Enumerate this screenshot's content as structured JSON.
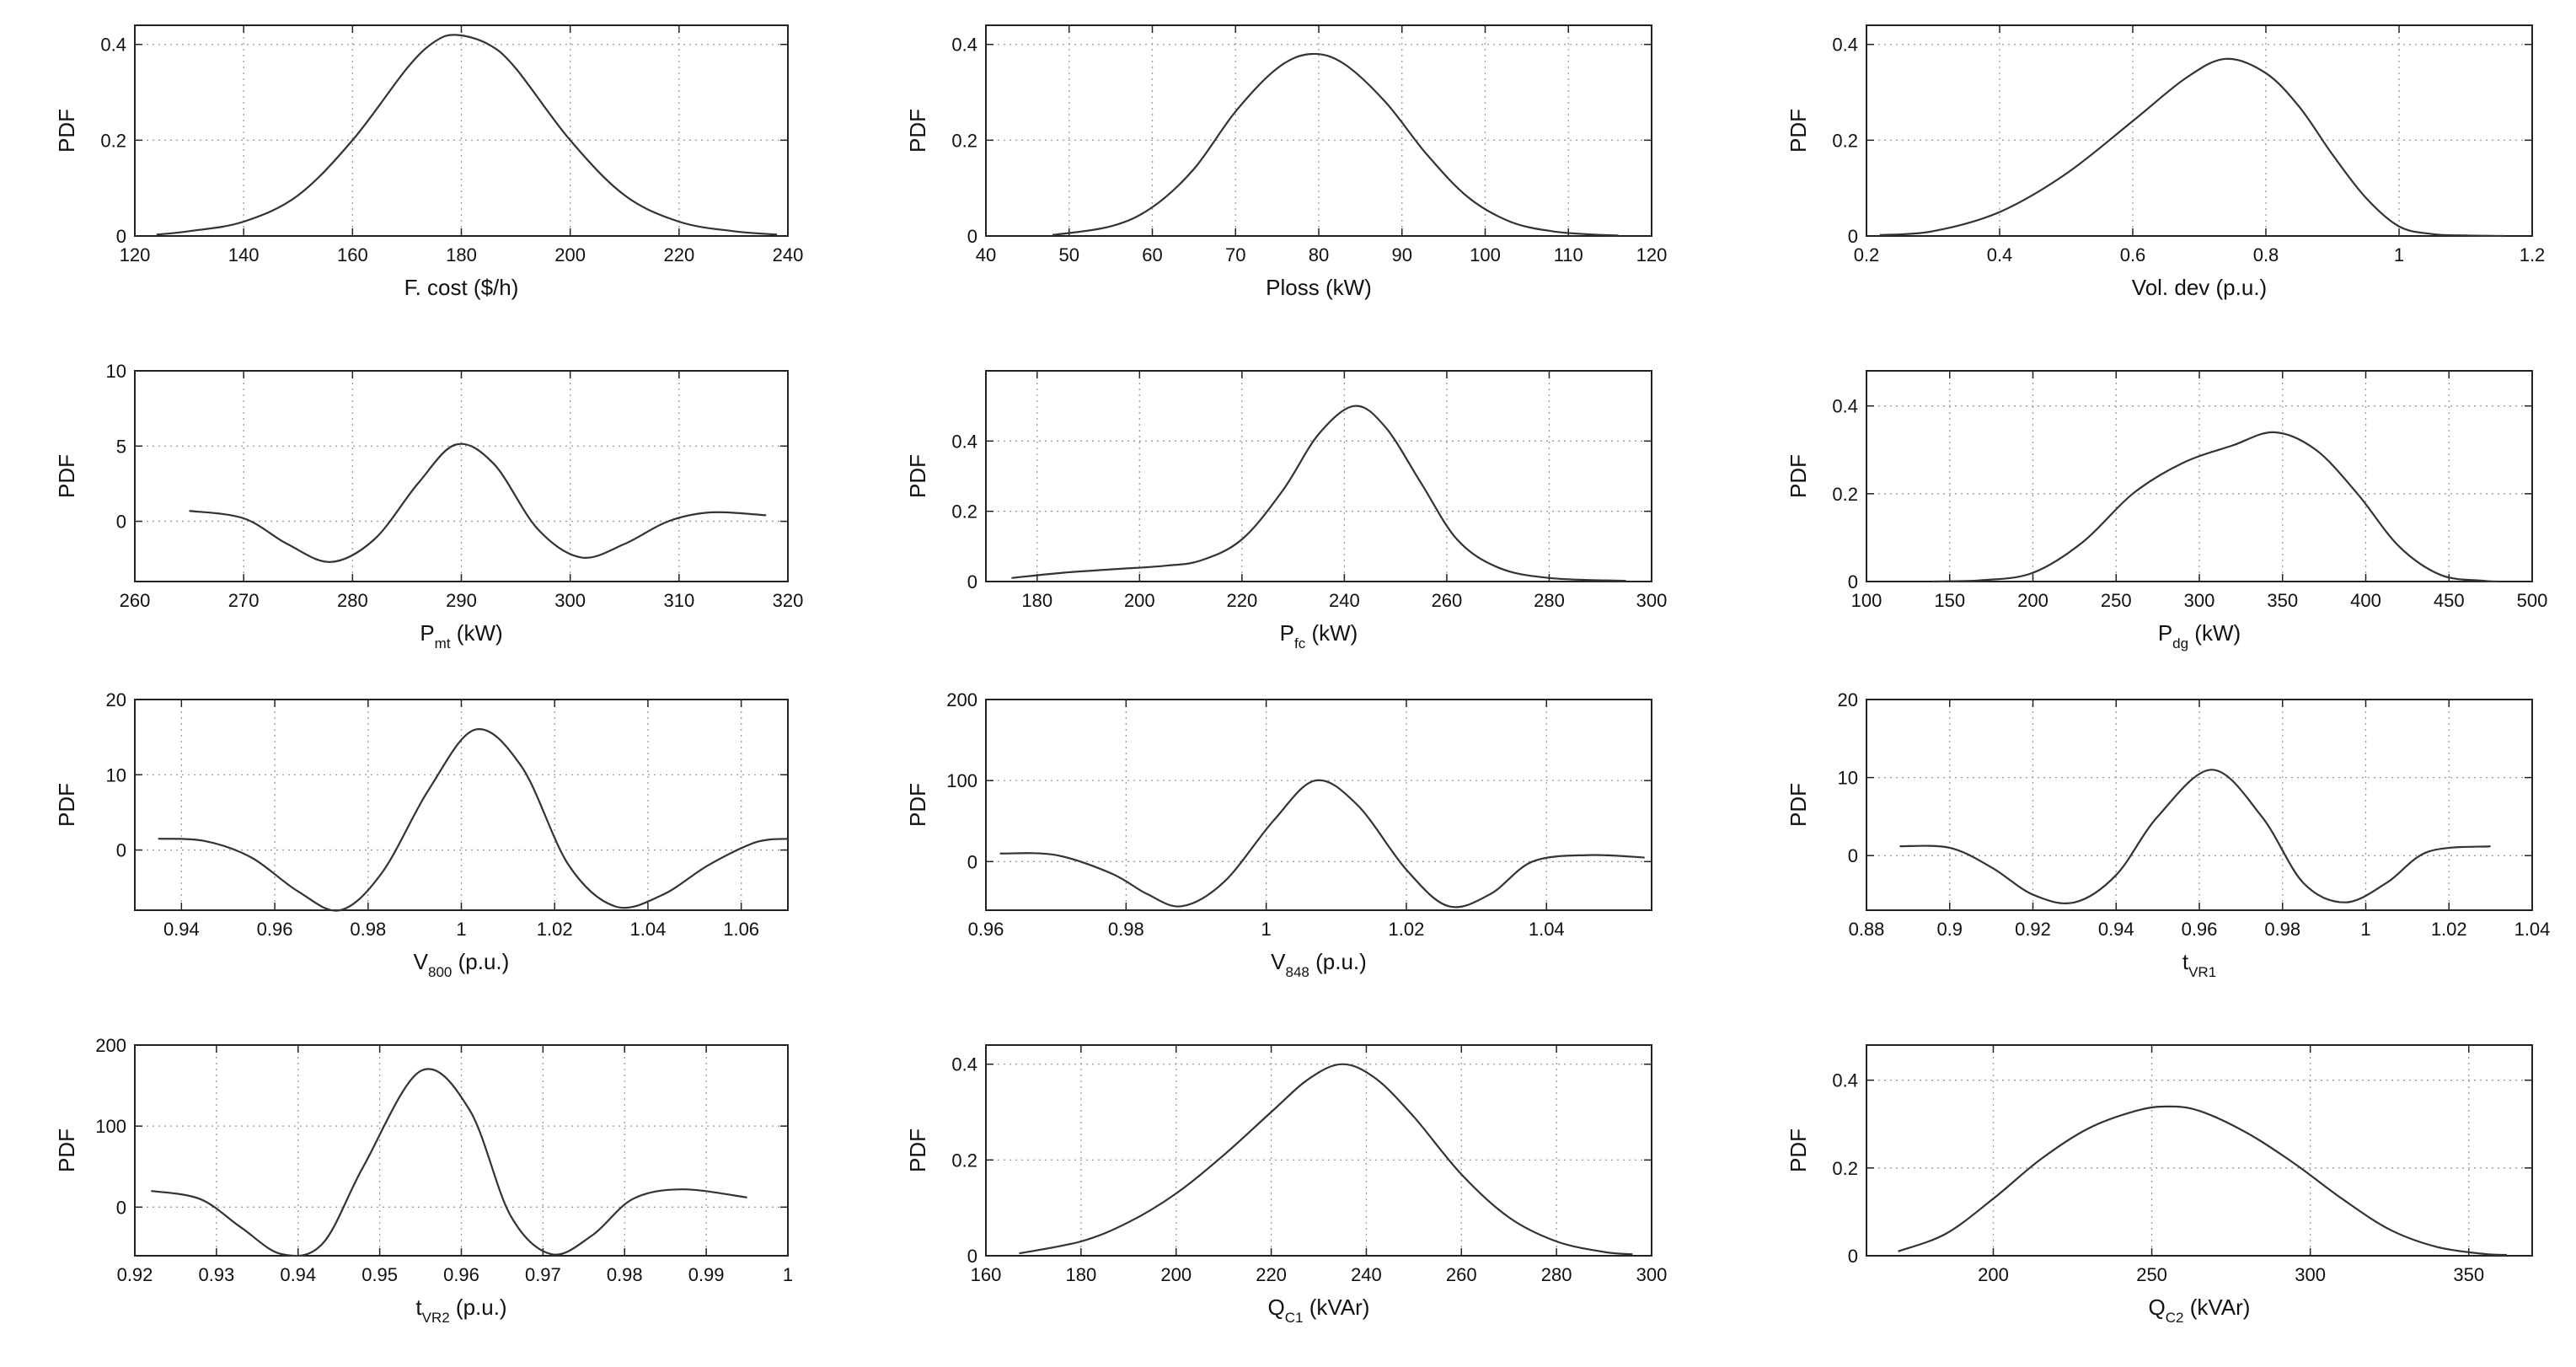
{
  "chart_data": [
    {
      "type": "line",
      "xlabel": [
        {
          "t": "F. cost ($/h)"
        }
      ],
      "ylabel": "PDF",
      "xlim": [
        120,
        240
      ],
      "ylim": [
        0,
        0.44
      ],
      "xticks": [
        120,
        140,
        160,
        180,
        200,
        220,
        240
      ],
      "xtick_labels": [
        "120",
        "140",
        "160",
        "180",
        "200",
        "220",
        "240"
      ],
      "yticks": [
        0,
        0.2,
        0.4
      ],
      "ytick_labels": [
        "0",
        "0.2",
        "0.4"
      ],
      "grid": true,
      "x": [
        124,
        130,
        140,
        150,
        160,
        170,
        175,
        179,
        185,
        190,
        200,
        210,
        220,
        230,
        238
      ],
      "y": [
        0.003,
        0.01,
        0.03,
        0.085,
        0.2,
        0.35,
        0.405,
        0.42,
        0.4,
        0.35,
        0.2,
        0.085,
        0.03,
        0.01,
        0.003
      ]
    },
    {
      "type": "line",
      "xlabel": [
        {
          "t": "Ploss (kW)"
        }
      ],
      "ylabel": "PDF",
      "xlim": [
        40,
        120
      ],
      "ylim": [
        0,
        0.44
      ],
      "xticks": [
        40,
        50,
        60,
        70,
        80,
        90,
        100,
        110,
        120
      ],
      "xtick_labels": [
        "40",
        "50",
        "60",
        "70",
        "80",
        "90",
        "100",
        "110",
        "120"
      ],
      "yticks": [
        0,
        0.2,
        0.4
      ],
      "ytick_labels": [
        "0",
        "0.2",
        "0.4"
      ],
      "grid": true,
      "x": [
        48,
        55,
        60,
        65,
        70,
        75,
        79,
        83,
        88,
        93,
        98,
        103,
        108,
        113,
        116
      ],
      "y": [
        0.002,
        0.02,
        0.06,
        0.14,
        0.26,
        0.35,
        0.38,
        0.36,
        0.28,
        0.17,
        0.08,
        0.03,
        0.01,
        0.003,
        0.001
      ]
    },
    {
      "type": "line",
      "xlabel": [
        {
          "t": "Vol. dev (p.u.)"
        }
      ],
      "ylabel": "PDF",
      "xlim": [
        0.2,
        1.2
      ],
      "ylim": [
        0,
        0.44
      ],
      "xticks": [
        0.2,
        0.4,
        0.6,
        0.8,
        1,
        1.2
      ],
      "xtick_labels": [
        "0.2",
        "0.4",
        "0.6",
        "0.8",
        "1",
        "1.2"
      ],
      "yticks": [
        0,
        0.2,
        0.4
      ],
      "ytick_labels": [
        "0",
        "0.2",
        "0.4"
      ],
      "grid": true,
      "x": [
        0.22,
        0.3,
        0.4,
        0.5,
        0.6,
        0.68,
        0.74,
        0.8,
        0.85,
        0.9,
        0.95,
        1.0,
        1.05,
        1.1,
        1.16
      ],
      "y": [
        0.002,
        0.01,
        0.05,
        0.13,
        0.24,
        0.33,
        0.37,
        0.34,
        0.27,
        0.17,
        0.08,
        0.02,
        0.004,
        0.001,
        0
      ]
    },
    {
      "type": "line",
      "xlabel": [
        {
          "t": "P"
        },
        {
          "t": "mt",
          "sub": true
        },
        {
          "t": " (kW)"
        }
      ],
      "ylabel": "PDF",
      "xlim": [
        260,
        320
      ],
      "ylim": [
        -4,
        10
      ],
      "xticks": [
        260,
        270,
        280,
        290,
        300,
        310,
        320
      ],
      "xtick_labels": [
        "260",
        "270",
        "280",
        "290",
        "300",
        "310",
        "320"
      ],
      "yticks": [
        0,
        5,
        10
      ],
      "ytick_labels": [
        "0",
        "5",
        "10"
      ],
      "grid": true,
      "x": [
        265,
        270,
        274,
        278,
        282,
        286,
        289.5,
        293,
        297,
        301,
        305,
        309,
        313,
        318
      ],
      "y": [
        0.7,
        0.2,
        -1.5,
        -2.7,
        -1.2,
        2.5,
        5.1,
        3.8,
        -0.5,
        -2.4,
        -1.5,
        0.0,
        0.6,
        0.4
      ]
    },
    {
      "type": "line",
      "xlabel": [
        {
          "t": "P"
        },
        {
          "t": "fc",
          "sub": true
        },
        {
          "t": " (kW)"
        }
      ],
      "ylabel": "PDF",
      "xlim": [
        170,
        300
      ],
      "ylim": [
        0,
        0.6
      ],
      "xticks": [
        180,
        200,
        220,
        240,
        260,
        280,
        300
      ],
      "xtick_labels": [
        "180",
        "200",
        "220",
        "240",
        "260",
        "280",
        "300"
      ],
      "yticks": [
        0,
        0.2,
        0.4
      ],
      "ytick_labels": [
        "0",
        "0.2",
        "0.4"
      ],
      "grid": true,
      "x": [
        175,
        185,
        195,
        205,
        212,
        220,
        228,
        235,
        242,
        248,
        255,
        262,
        270,
        280,
        295
      ],
      "y": [
        0.01,
        0.025,
        0.035,
        0.045,
        0.06,
        0.12,
        0.26,
        0.42,
        0.5,
        0.44,
        0.28,
        0.12,
        0.04,
        0.01,
        0.002
      ]
    },
    {
      "type": "line",
      "xlabel": [
        {
          "t": "P"
        },
        {
          "t": "dg",
          "sub": true
        },
        {
          "t": " (kW)"
        }
      ],
      "ylabel": "PDF",
      "xlim": [
        100,
        500
      ],
      "ylim": [
        0,
        0.48
      ],
      "xticks": [
        100,
        150,
        200,
        250,
        300,
        350,
        400,
        450,
        500
      ],
      "xtick_labels": [
        "100",
        "150",
        "200",
        "250",
        "300",
        "350",
        "400",
        "450",
        "500"
      ],
      "yticks": [
        0,
        0.2,
        0.4
      ],
      "ytick_labels": [
        "0",
        "0.2",
        "0.4"
      ],
      "grid": true,
      "x": [
        140,
        170,
        200,
        230,
        260,
        290,
        320,
        345,
        370,
        395,
        420,
        445,
        470,
        480
      ],
      "y": [
        0,
        0.003,
        0.02,
        0.09,
        0.2,
        0.27,
        0.31,
        0.34,
        0.3,
        0.2,
        0.08,
        0.015,
        0.002,
        0
      ]
    },
    {
      "type": "line",
      "xlabel": [
        {
          "t": "V"
        },
        {
          "t": "800",
          "sub": true
        },
        {
          "t": " (p.u.)"
        }
      ],
      "ylabel": "PDF",
      "xlim": [
        0.93,
        1.07
      ],
      "ylim": [
        -8,
        20
      ],
      "xticks": [
        0.94,
        0.96,
        0.98,
        1,
        1.02,
        1.04,
        1.06
      ],
      "xtick_labels": [
        "0.94",
        "0.96",
        "0.98",
        "1",
        "1.02",
        "1.04",
        "1.06"
      ],
      "yticks": [
        0,
        10,
        20
      ],
      "ytick_labels": [
        "0",
        "10",
        "20"
      ],
      "grid": true,
      "x": [
        0.935,
        0.945,
        0.955,
        0.965,
        0.974,
        0.983,
        0.993,
        1.003,
        1.013,
        1.023,
        1.033,
        1.043,
        1.053,
        1.063,
        1.07
      ],
      "y": [
        1.5,
        1.2,
        -1.0,
        -5.5,
        -8.0,
        -3.0,
        8.0,
        16.0,
        11.0,
        -2.0,
        -7.5,
        -6.0,
        -2.0,
        1.0,
        1.5
      ]
    },
    {
      "type": "line",
      "xlabel": [
        {
          "t": "V"
        },
        {
          "t": "848",
          "sub": true
        },
        {
          "t": " (p.u.)"
        }
      ],
      "ylabel": "PDF",
      "xlim": [
        0.96,
        1.055
      ],
      "ylim": [
        -60,
        200
      ],
      "xticks": [
        0.96,
        0.98,
        1,
        1.02,
        1.04
      ],
      "xtick_labels": [
        "0.96",
        "0.98",
        "1",
        "1.02",
        "1.04"
      ],
      "yticks": [
        0,
        100,
        200
      ],
      "ytick_labels": [
        "0",
        "100",
        "200"
      ],
      "grid": true,
      "x": [
        0.962,
        0.97,
        0.978,
        0.983,
        0.988,
        0.994,
        1.001,
        1.007,
        1.013,
        1.02,
        1.026,
        1.032,
        1.038,
        1.046,
        1.054
      ],
      "y": [
        10,
        8,
        -15,
        -40,
        -55,
        -25,
        50,
        100,
        70,
        -10,
        -55,
        -40,
        0,
        8,
        5
      ]
    },
    {
      "type": "line",
      "xlabel": [
        {
          "t": "t"
        },
        {
          "t": "VR1",
          "sub": true
        }
      ],
      "ylabel": "PDF",
      "xlim": [
        0.88,
        1.04
      ],
      "ylim": [
        -7,
        20
      ],
      "xticks": [
        0.88,
        0.9,
        0.92,
        0.94,
        0.96,
        0.98,
        1,
        1.02,
        1.04
      ],
      "xtick_labels": [
        "0.88",
        "0.9",
        "0.92",
        "0.94",
        "0.96",
        "0.98",
        "1",
        "1.02",
        "1.04"
      ],
      "yticks": [
        0,
        10,
        20
      ],
      "ytick_labels": [
        "0",
        "10",
        "20"
      ],
      "grid": true,
      "x": [
        0.888,
        0.9,
        0.91,
        0.92,
        0.93,
        0.94,
        0.95,
        0.963,
        0.975,
        0.985,
        0.995,
        1.005,
        1.015,
        1.03
      ],
      "y": [
        1.2,
        1.0,
        -1.5,
        -5.0,
        -6.0,
        -2.5,
        5.0,
        11.0,
        5.0,
        -3.5,
        -6.0,
        -3.5,
        0.5,
        1.2
      ]
    },
    {
      "type": "line",
      "xlabel": [
        {
          "t": "t"
        },
        {
          "t": "VR2",
          "sub": true
        },
        {
          "t": " (p.u.)"
        }
      ],
      "ylabel": "PDF",
      "xlim": [
        0.92,
        1
      ],
      "ylim": [
        -60,
        200
      ],
      "xticks": [
        0.92,
        0.93,
        0.94,
        0.95,
        0.96,
        0.97,
        0.98,
        0.99,
        1
      ],
      "xtick_labels": [
        "0.92",
        "0.93",
        "0.94",
        "0.95",
        "0.96",
        "0.97",
        "0.98",
        "0.99",
        "1"
      ],
      "yticks": [
        0,
        100,
        200
      ],
      "ytick_labels": [
        "0",
        "100",
        "200"
      ],
      "grid": true,
      "x": [
        0.922,
        0.928,
        0.933,
        0.938,
        0.943,
        0.948,
        0.955,
        0.961,
        0.966,
        0.971,
        0.976,
        0.981,
        0.987,
        0.995
      ],
      "y": [
        20,
        10,
        -25,
        -58,
        -45,
        50,
        168,
        120,
        -10,
        -58,
        -35,
        10,
        22,
        12
      ]
    },
    {
      "type": "line",
      "xlabel": [
        {
          "t": "Q"
        },
        {
          "t": "C1",
          "sub": true
        },
        {
          "t": " (kVAr)"
        }
      ],
      "ylabel": "PDF",
      "xlim": [
        160,
        300
      ],
      "ylim": [
        0,
        0.44
      ],
      "xticks": [
        160,
        180,
        200,
        220,
        240,
        260,
        280,
        300
      ],
      "xtick_labels": [
        "160",
        "180",
        "200",
        "220",
        "240",
        "260",
        "280",
        "300"
      ],
      "yticks": [
        0,
        0.2,
        0.4
      ],
      "ytick_labels": [
        "0",
        "0.2",
        "0.4"
      ],
      "grid": true,
      "x": [
        167,
        180,
        190,
        200,
        210,
        220,
        228,
        235,
        242,
        250,
        260,
        270,
        280,
        290,
        296
      ],
      "y": [
        0.005,
        0.03,
        0.07,
        0.13,
        0.21,
        0.3,
        0.37,
        0.4,
        0.37,
        0.29,
        0.17,
        0.08,
        0.03,
        0.008,
        0.003
      ]
    },
    {
      "type": "line",
      "xlabel": [
        {
          "t": "Q"
        },
        {
          "t": "C2",
          "sub": true
        },
        {
          "t": " (kVAr)"
        }
      ],
      "ylabel": "PDF",
      "xlim": [
        160,
        370
      ],
      "ylim": [
        0,
        0.48
      ],
      "xticks": [
        200,
        250,
        300,
        350
      ],
      "xtick_labels": [
        "200",
        "250",
        "300",
        "350"
      ],
      "yticks": [
        0,
        0.2,
        0.4
      ],
      "ytick_labels": [
        "0",
        "0.2",
        "0.4"
      ],
      "grid": true,
      "x": [
        170,
        185,
        200,
        215,
        230,
        245,
        255,
        265,
        280,
        295,
        310,
        325,
        340,
        355,
        362
      ],
      "y": [
        0.01,
        0.05,
        0.13,
        0.22,
        0.29,
        0.33,
        0.34,
        0.33,
        0.28,
        0.21,
        0.13,
        0.06,
        0.02,
        0.004,
        0.002
      ]
    }
  ]
}
